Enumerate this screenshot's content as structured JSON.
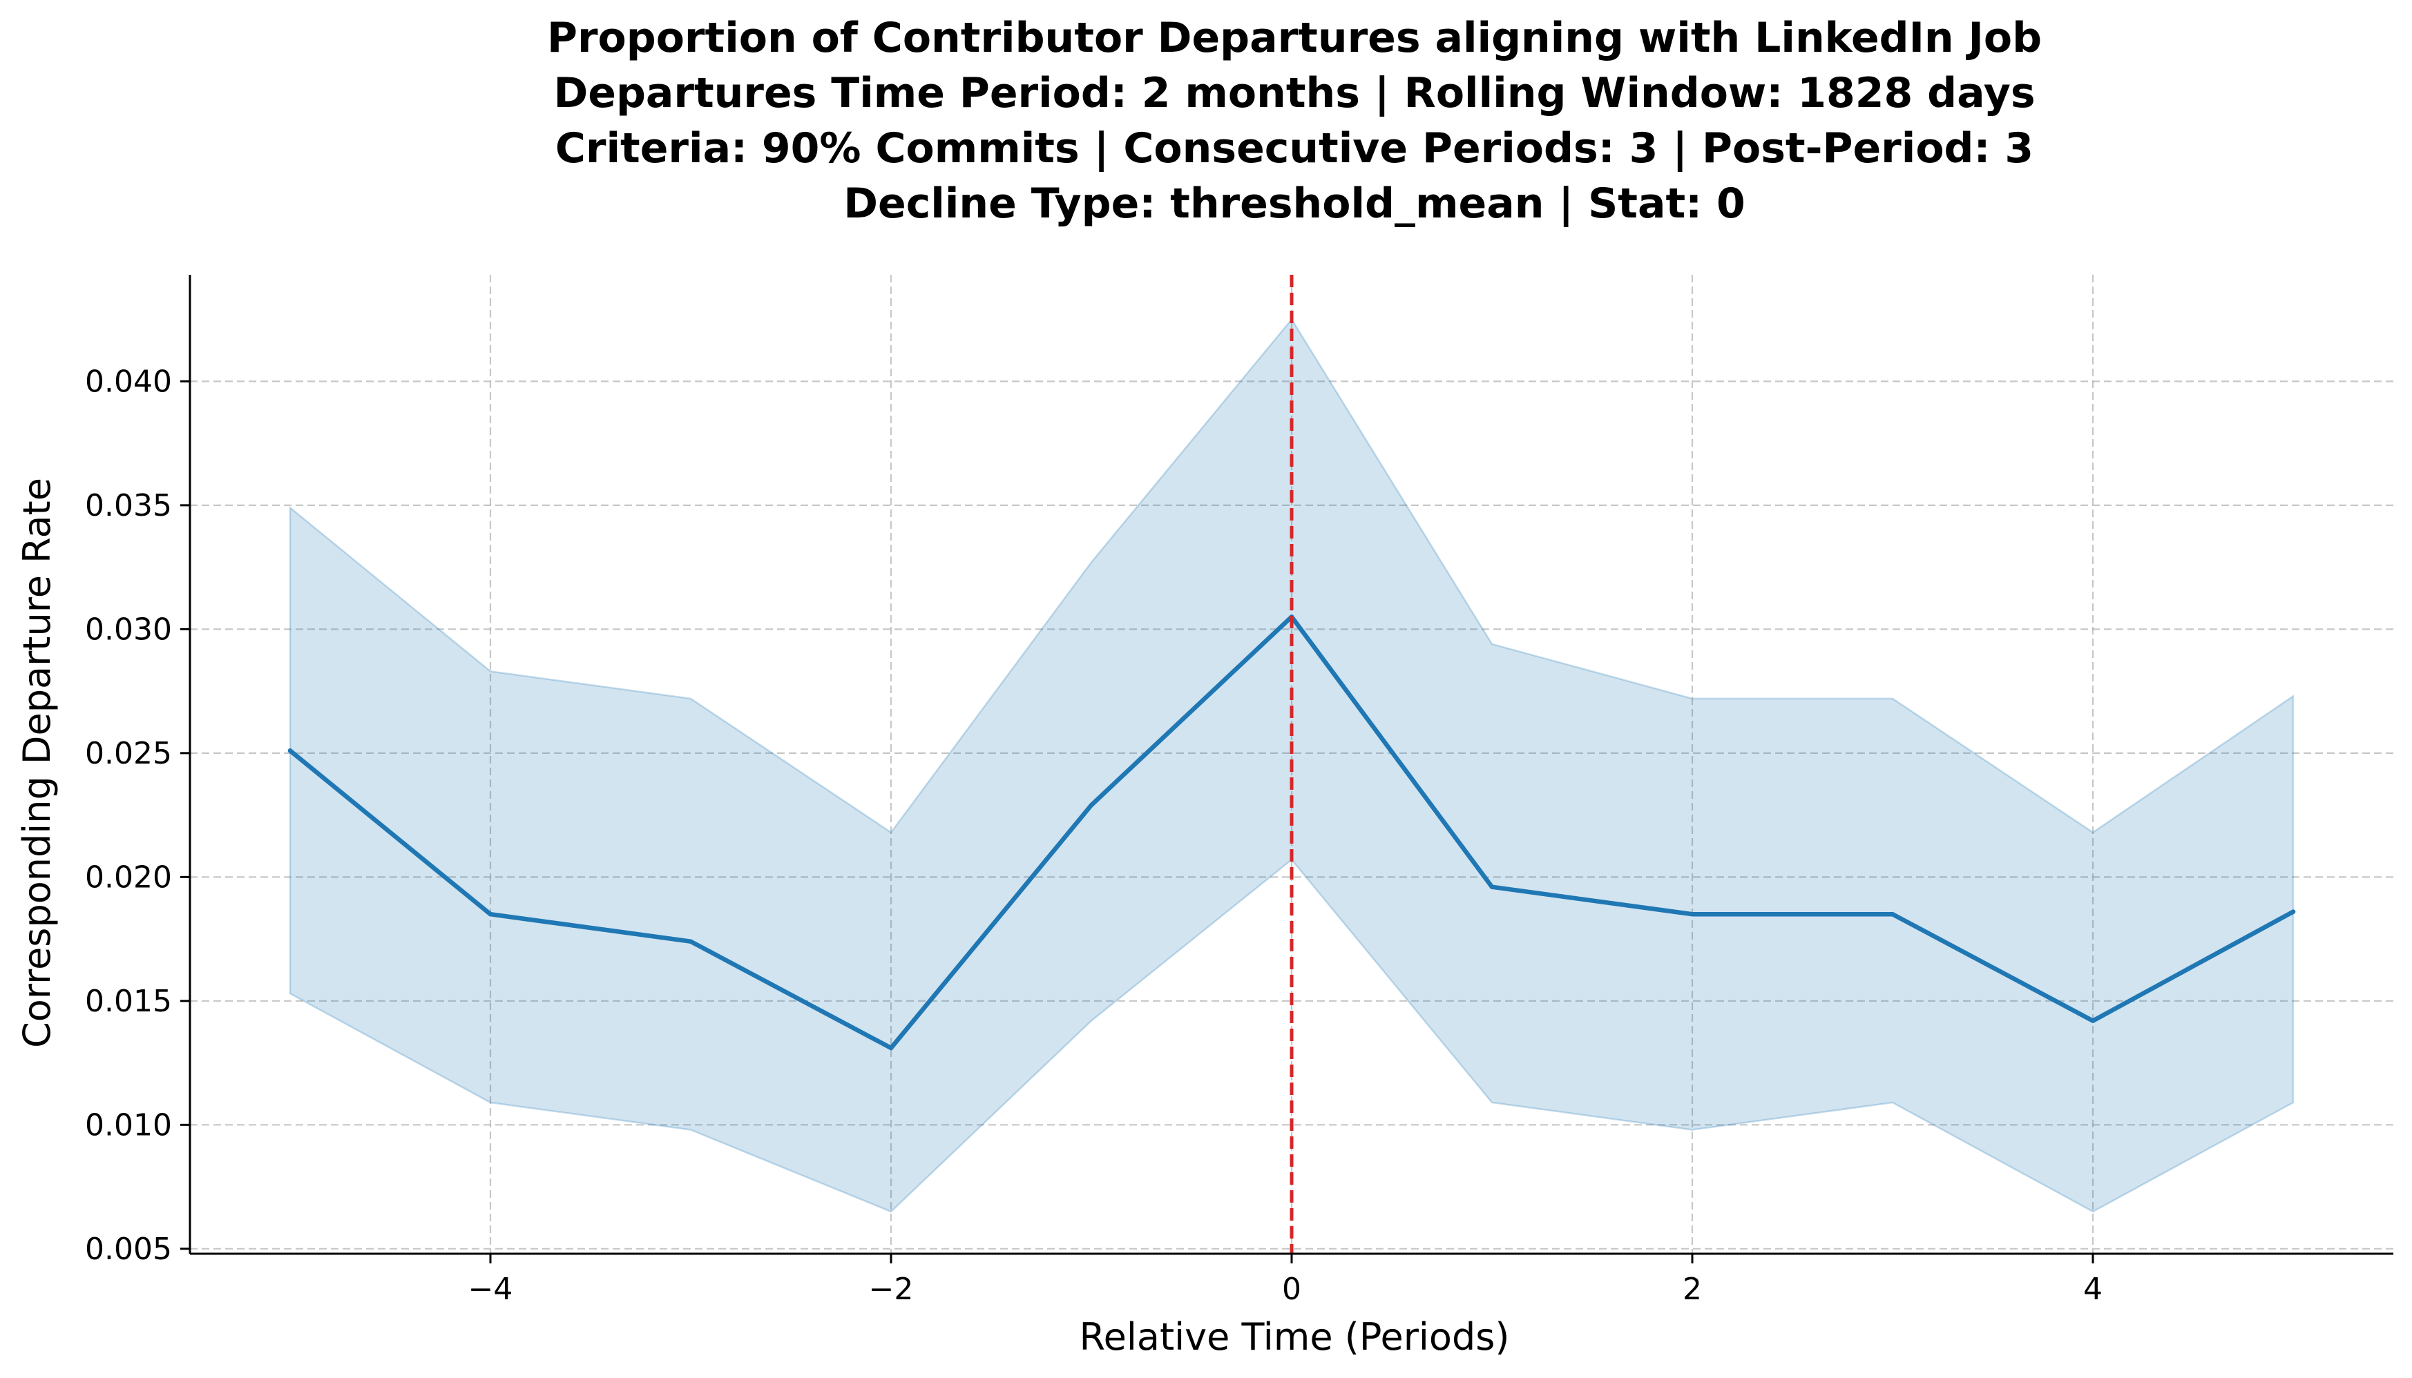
{
  "chart_data": {
    "type": "line",
    "title_lines": [
      "Proportion of Contributor Departures aligning with LinkedIn Job",
      "Departures Time Period: 2 months | Rolling Window: 1828 days",
      "Criteria: 90% Commits | Consecutive Periods: 3 | Post-Period: 3",
      "Decline Type: threshold_mean | Stat: 0"
    ],
    "xlabel": "Relative Time (Periods)",
    "ylabel": "Corresponding Departure Rate",
    "xlim": [
      -5.5,
      5.5
    ],
    "ylim": [
      0.0048,
      0.0443
    ],
    "xticks": [
      -4,
      -2,
      0,
      2,
      4
    ],
    "xtick_labels": [
      "−4",
      "−2",
      "0",
      "2",
      "4"
    ],
    "yticks": [
      0.005,
      0.01,
      0.015,
      0.02,
      0.025,
      0.03,
      0.035,
      0.04
    ],
    "ytick_labels": [
      "0.005",
      "0.010",
      "0.015",
      "0.020",
      "0.025",
      "0.030",
      "0.035",
      "0.040"
    ],
    "grid": true,
    "series": [
      {
        "x": [
          -5,
          -4,
          -3,
          -2,
          -1,
          0,
          1,
          2,
          3,
          4,
          5
        ],
        "values": [
          0.0251,
          0.0185,
          0.0174,
          0.0131,
          0.0229,
          0.0305,
          0.0196,
          0.0185,
          0.0185,
          0.0142,
          0.0186
        ],
        "ci_lower": [
          0.0153,
          0.0109,
          0.0098,
          0.0065,
          0.0142,
          0.0207,
          0.0109,
          0.0098,
          0.0109,
          0.0065,
          0.0109
        ],
        "ci_upper": [
          0.0349,
          0.0283,
          0.0272,
          0.0218,
          0.0327,
          0.0425,
          0.0294,
          0.0272,
          0.0272,
          0.0218,
          0.0273
        ],
        "color": "#1f77b4",
        "band_color": "#1f77b4"
      }
    ],
    "vline": {
      "x": 0,
      "color": "#d62728",
      "style": "dashed"
    }
  }
}
